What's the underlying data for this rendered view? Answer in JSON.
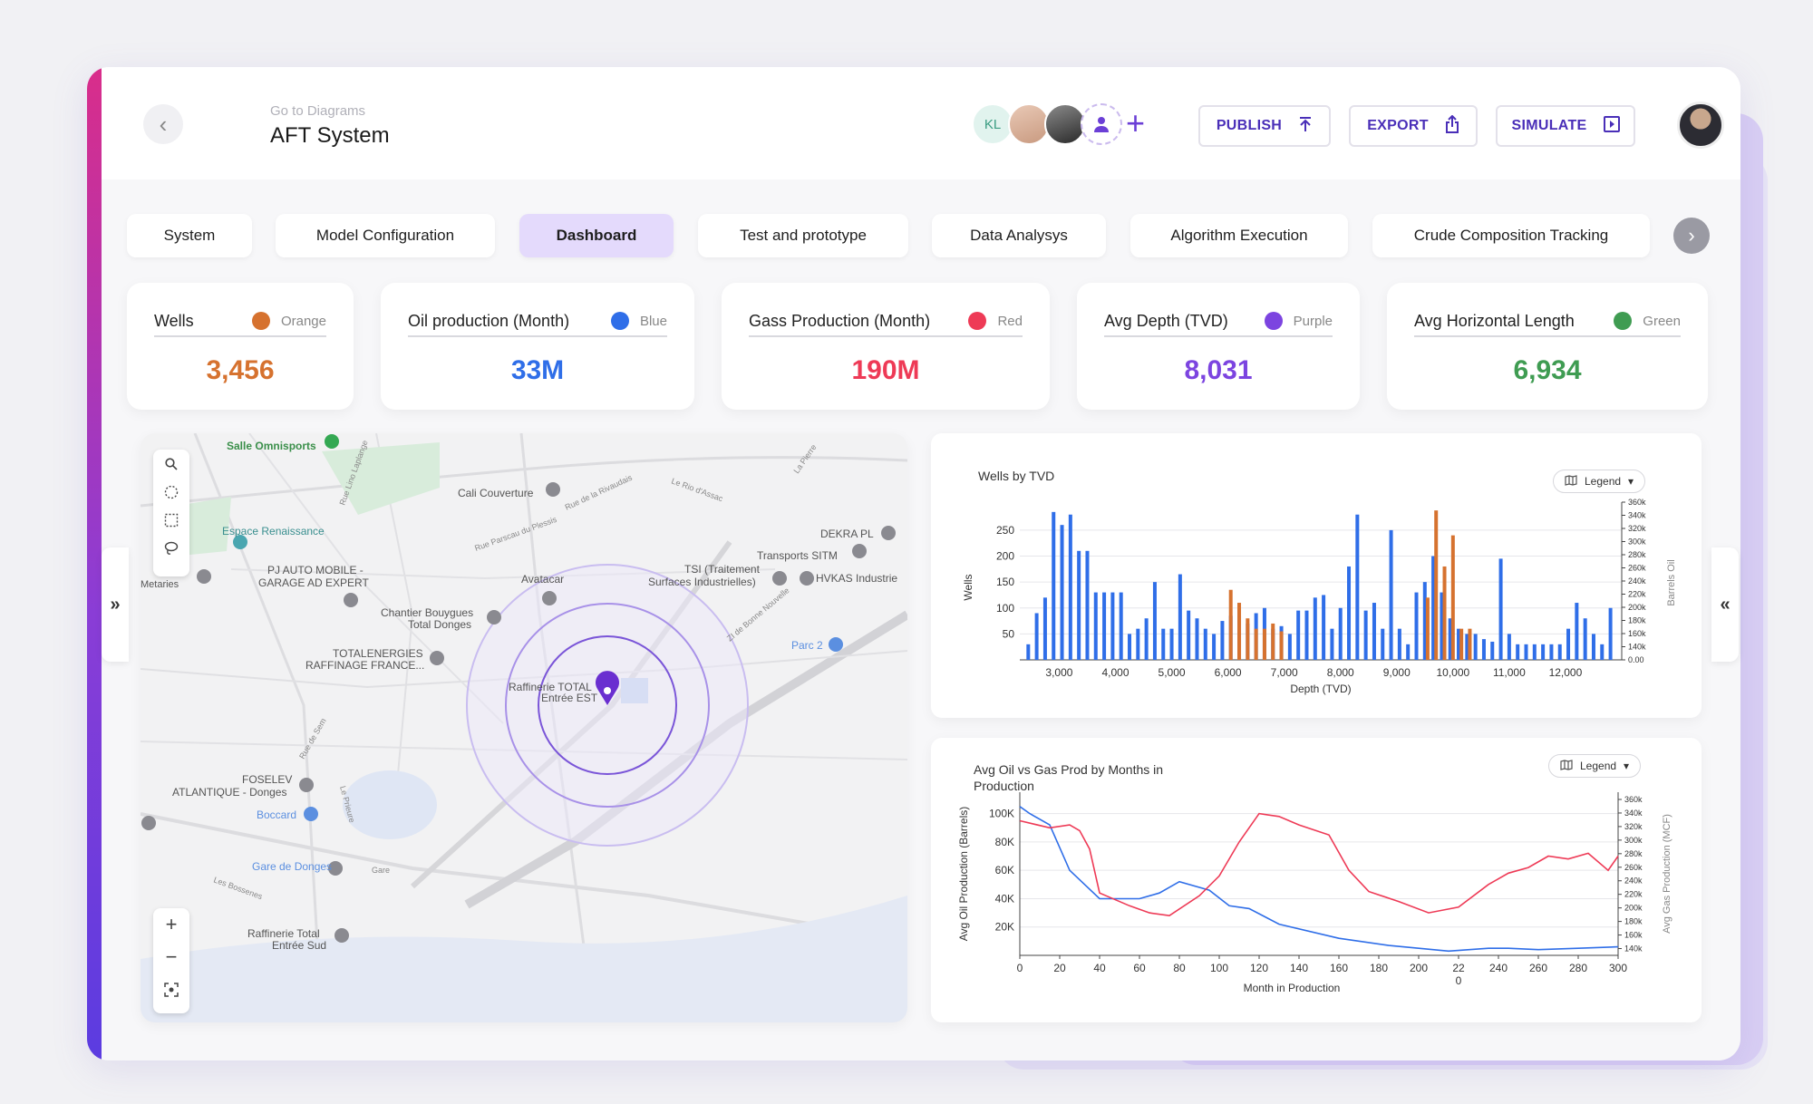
{
  "header": {
    "breadcrumb": "Go to Diagrams",
    "title": "AFT System",
    "avatar_initials": "KL",
    "buttons": {
      "publish": "PUBLISH",
      "export": "EXPORT",
      "simulate": "SIMULATE"
    }
  },
  "tabs": [
    {
      "label": "System"
    },
    {
      "label": "Model Configuration"
    },
    {
      "label": "Dashboard",
      "active": true
    },
    {
      "label": "Test and prototype"
    },
    {
      "label": "Data Analysys"
    },
    {
      "label": "Algorithm Execution"
    },
    {
      "label": "Crude Composition Tracking"
    }
  ],
  "kpis": [
    {
      "label": "Wells",
      "color_name": "Orange",
      "color": "#d6722f",
      "value": "3,456"
    },
    {
      "label": "Oil production (Month)",
      "color_name": "Blue",
      "color": "#2f6ee8",
      "value": "33M"
    },
    {
      "label": "Gass Production (Month)",
      "color_name": "Red",
      "color": "#ee3a56",
      "value": "190M"
    },
    {
      "label": "Avg Depth (TVD)",
      "color_name": "Purple",
      "color": "#7c44e0",
      "value": "8,031"
    },
    {
      "label": "Avg Horizontal Length",
      "color_name": "Green",
      "color": "#3f9c52",
      "value": "6,934"
    }
  ],
  "map": {
    "labels": [
      "Salle Omnisports",
      "Cali Couverture",
      "Espace Renaissance",
      "DEKRA PL",
      "Transports SITM",
      "PJ AUTO MOBILE -",
      "GARAGE AD EXPERT",
      "Avatacar",
      "TSI (Traitement",
      "Surfaces Industrielles)",
      "HVKAS Industrie",
      "Chantier Bouygues",
      "Total Donges",
      "Parc 2",
      "TOTALENERGIES",
      "RAFFINAGE FRANCE...",
      "Raffinerie TOTAL",
      "Entrée EST",
      "FOSELEV",
      "ATLANTIQUE - Donges",
      "Boccard",
      "Gare de Donges",
      "Raffinerie Total",
      "Entrée Sud",
      "Metaries",
      "Rue Parscau du Plessis",
      "Rue de la Rivaudais",
      "Le Rio d'Assac",
      "La Pierre",
      "Rue de Sem",
      "Les Bossenes",
      "Le Prieure",
      "Rue Lino Laplange",
      "ZI de Bonne Nouvelle",
      "Gare"
    ]
  },
  "chart_data": [
    {
      "type": "bar",
      "title": "Wells by TVD",
      "xlabel": "Depth (TVD)",
      "ylabel": "Wells",
      "y2label": "Barrels Oil",
      "legend_label": "Legend",
      "xlim": [
        2300,
        13000
      ],
      "ylim": [
        0,
        290
      ],
      "y2lim": [
        0,
        360000
      ],
      "x_ticks": [
        "3,000",
        "4,000",
        "5,000",
        "6,000",
        "7,000",
        "8,000",
        "9,000",
        "10,000",
        "11,000",
        "12,000"
      ],
      "x_tick_values": [
        3000,
        4000,
        5000,
        6000,
        7000,
        8000,
        9000,
        10000,
        11000,
        12000
      ],
      "y_ticks": [
        50,
        100,
        150,
        200,
        250
      ],
      "y2_ticks": [
        "0.00",
        "140k",
        "160k",
        "180k",
        "200k",
        "220k",
        "240k",
        "260k",
        "280k",
        "300k",
        "320k",
        "340k",
        "360k"
      ],
      "series": [
        {
          "name": "Blue",
          "color": "#2f6ee8",
          "x": [
            2450,
            2600,
            2750,
            2900,
            3050,
            3200,
            3350,
            3500,
            3650,
            3800,
            3950,
            4100,
            4250,
            4400,
            4550,
            4700,
            4850,
            5000,
            5150,
            5300,
            5450,
            5600,
            5750,
            5900,
            6050,
            6200,
            6350,
            6500,
            6650,
            6800,
            6950,
            7100,
            7250,
            7400,
            7550,
            7700,
            7850,
            8000,
            8150,
            8300,
            8450,
            8600,
            8750,
            8900,
            9050,
            9200,
            9350,
            9500,
            9650,
            9800,
            9950,
            10100,
            10250,
            10400,
            10550,
            10700,
            10850,
            11000,
            11150,
            11300,
            11450,
            11600,
            11750,
            11900,
            12050,
            12200,
            12350,
            12500,
            12650,
            12800
          ],
          "values": [
            30,
            90,
            120,
            285,
            260,
            280,
            210,
            210,
            130,
            130,
            130,
            130,
            50,
            60,
            80,
            150,
            60,
            60,
            165,
            95,
            80,
            60,
            50,
            75,
            85,
            85,
            70,
            90,
            100,
            60,
            65,
            50,
            95,
            95,
            120,
            125,
            60,
            100,
            180,
            280,
            95,
            110,
            60,
            250,
            60,
            30,
            130,
            150,
            200,
            130,
            80,
            60,
            50,
            50,
            40,
            35,
            195,
            50,
            30,
            30,
            30,
            30,
            30,
            30,
            60,
            110,
            80,
            50,
            30,
            100
          ]
        },
        {
          "name": "Orange",
          "color": "#d6722f",
          "x": [
            6050,
            6200,
            6350,
            6500,
            6650,
            6800,
            6950,
            9550,
            9700,
            9850,
            10000,
            10150,
            10300
          ],
          "values": [
            135,
            110,
            80,
            60,
            60,
            70,
            55,
            120,
            288,
            180,
            240,
            60,
            60
          ]
        }
      ]
    },
    {
      "type": "line",
      "title": "Avg Oil vs Gas Prod by Months in Production",
      "xlabel": "Month in Production",
      "ylabel": "Avg Oil Production (Barrels)",
      "y2label": "Avg Gas Production (MCF)",
      "legend_label": "Legend",
      "xlim": [
        0,
        300
      ],
      "ylim": [
        0,
        110000
      ],
      "y2lim": [
        130000,
        360000
      ],
      "x_ticks": [
        "0",
        "20",
        "40",
        "60",
        "80",
        "100",
        "120",
        "140",
        "160",
        "180",
        "200",
        "22\n0",
        "240",
        "260",
        "280",
        "300"
      ],
      "y_ticks": [
        "20K",
        "40K",
        "60K",
        "80K",
        "100K"
      ],
      "y_tick_values": [
        20000,
        40000,
        60000,
        80000,
        100000
      ],
      "y2_ticks": [
        "140k",
        "160k",
        "180k",
        "200k",
        "220k",
        "240k",
        "260k",
        "280k",
        "300k",
        "320k",
        "340k",
        "360k"
      ],
      "y2_tick_values": [
        140000,
        160000,
        180000,
        200000,
        220000,
        240000,
        260000,
        280000,
        300000,
        320000,
        340000,
        360000
      ],
      "series": [
        {
          "name": "Blue",
          "color": "#2f6ee8",
          "x": [
            0,
            5,
            15,
            25,
            40,
            60,
            70,
            80,
            95,
            105,
            115,
            130,
            160,
            185,
            200,
            215,
            235,
            245,
            260,
            280,
            300
          ],
          "values": [
            105000,
            100000,
            92000,
            60000,
            40000,
            40000,
            44000,
            52000,
            46000,
            35000,
            33000,
            22000,
            12000,
            7000,
            5000,
            3000,
            5000,
            5000,
            4000,
            5000,
            6000
          ]
        },
        {
          "name": "Red",
          "color": "#ee3a56",
          "x": [
            0,
            15,
            25,
            30,
            35,
            40,
            55,
            65,
            75,
            90,
            100,
            110,
            120,
            130,
            140,
            155,
            165,
            175,
            190,
            205,
            220,
            235,
            245,
            255,
            265,
            275,
            285,
            295,
            300
          ],
          "values": [
            95000,
            90000,
            92000,
            88000,
            75000,
            44000,
            35000,
            30000,
            28000,
            42000,
            56000,
            80000,
            100000,
            98000,
            92000,
            85000,
            60000,
            45000,
            38000,
            30000,
            34000,
            50000,
            58000,
            62000,
            70000,
            68000,
            72000,
            60000,
            70000
          ]
        }
      ]
    }
  ]
}
